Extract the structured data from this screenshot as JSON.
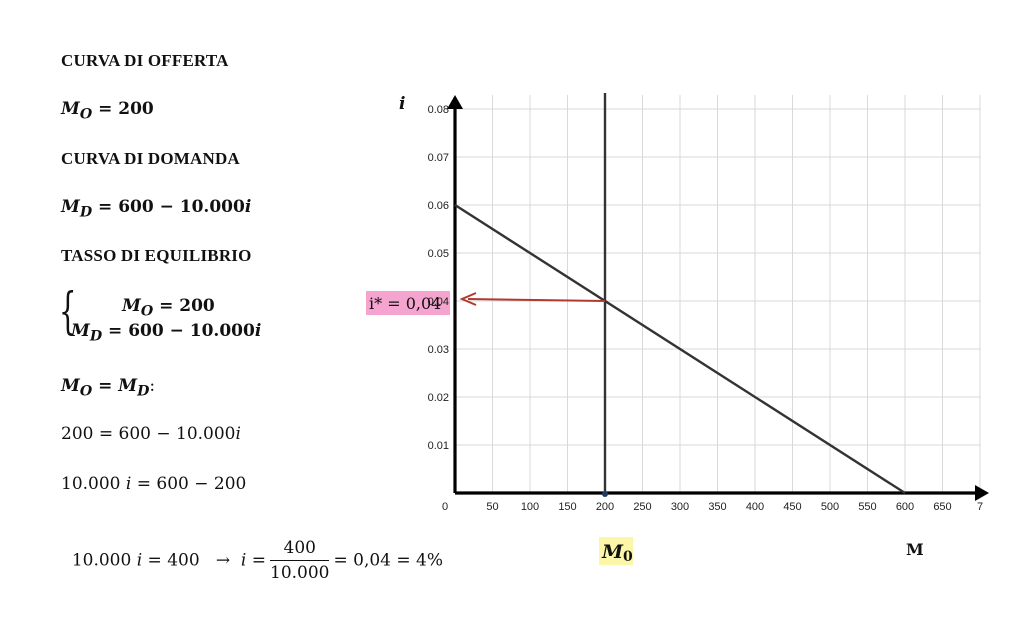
{
  "notes": {
    "supply_heading": "CURVA DI OFFERTA",
    "supply_eq": "M",
    "supply_sub": "O",
    "supply_rhs": " = 200",
    "demand_heading": "CURVA DI DOMANDA",
    "demand_eq": "M",
    "demand_sub": "D",
    "demand_rhs": " = 600 − 10.000",
    "demand_var": "i",
    "equilibrium_heading": "TASSO DI EQUILIBRIO",
    "system_line1_lhs": "M",
    "system_line1_sub": "O",
    "system_line1_rhs": " = 200",
    "system_line2_lhs": "M",
    "system_line2_sub": "D",
    "system_line2_rhs": " = 600 − 10.000",
    "system_line2_var": "i",
    "condition_m": "M",
    "condition_sub_o": "O",
    "condition_eq": " = ",
    "condition_m2": "M",
    "condition_sub_d": "D",
    "condition_colon": ":",
    "step1": "200 = 600 − 10.000",
    "step1_var": "i",
    "step2_a": "10.000 ",
    "step2_var": "i",
    "step2_b": " = 600 − 200",
    "step3_a": "10.000 ",
    "step3_var": "i",
    "step3_b": " = 400   →  ",
    "step3_var2": "i",
    "step3_eq": " =",
    "step3_num": "400",
    "step3_den": "10.000",
    "step3_result": "= 0,04 = 4%"
  },
  "chart_data": {
    "type": "line",
    "ylabel": "i",
    "xlabel": "M",
    "x_ticks": [
      "0",
      "50",
      "100",
      "150",
      "200",
      "250",
      "300",
      "350",
      "400",
      "450",
      "500",
      "550",
      "600",
      "650",
      "7"
    ],
    "y_ticks": [
      "0.01",
      "0.02",
      "0.03",
      "0.04",
      "0.05",
      "0.06",
      "0.07",
      "0.08"
    ],
    "xlim": [
      0,
      700
    ],
    "ylim": [
      0,
      0.08
    ],
    "grid": true,
    "series": [
      {
        "values": [
          {
            "x": 0,
            "y": 0.06
          },
          {
            "x": 600,
            "y": 0
          }
        ],
        "color": "#333333"
      },
      {
        "values": [
          {
            "x": 200,
            "y": 0
          },
          {
            "x": 200,
            "y": 0.08
          }
        ],
        "color": "#333333"
      }
    ],
    "equilibrium": {
      "x": 200,
      "y": 0.04
    },
    "annotations": {
      "i_star_label": "i* = 0,04",
      "m0_label_base": "M",
      "m0_label_sub": "0"
    },
    "colors": {
      "arrow": "#b03a2e",
      "i_star_highlight": "#f5a3cf",
      "m0_highlight": "#fbf6a8",
      "grid": "#d9d9d9"
    }
  }
}
